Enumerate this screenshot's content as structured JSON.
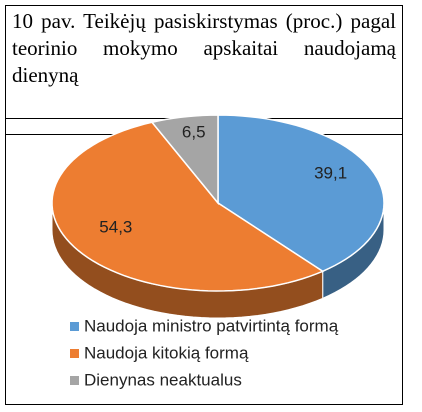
{
  "chart_data": {
    "type": "pie3d",
    "title": "10 pav. Teikėjų pasiskirstymas (proc.) pagal teorinio mokymo apskaitai naudojamą dienyną",
    "categories": [
      "Naudoja ministro patvirtintą formą",
      "Naudoja kitokią formą",
      "Dienynas neaktualus"
    ],
    "values": [
      39.1,
      54.3,
      6.5
    ],
    "value_labels": [
      "39,1",
      "54,3",
      "6,5"
    ],
    "colors": [
      "#5b9bd5",
      "#ed7d31",
      "#a5a5a5"
    ],
    "legend": "bottom"
  }
}
